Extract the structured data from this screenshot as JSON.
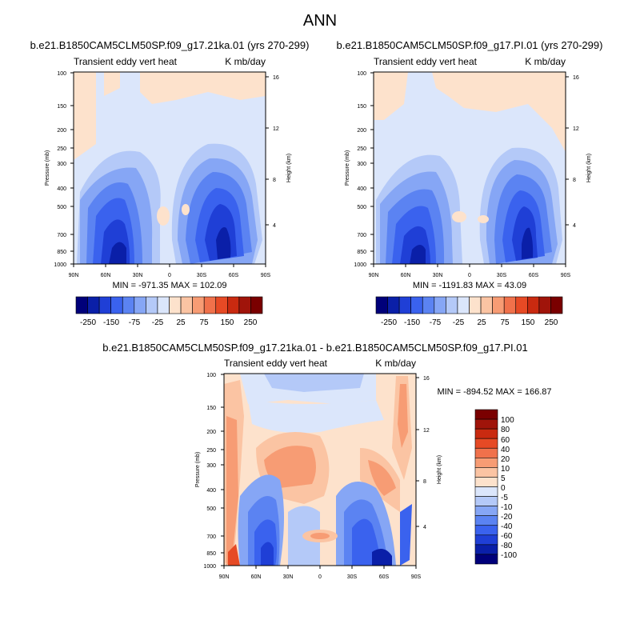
{
  "page_title": "ANN",
  "panels": [
    {
      "id": "top-left",
      "case_title": "b.e21.B1850CAM5CLM50SP.f09_g17.21ka.01 (yrs 270-299)",
      "left_string": "Transient eddy vert heat",
      "right_string": "K mb/day",
      "stats_text": "MIN = -971.35  MAX = 102.09"
    },
    {
      "id": "top-right",
      "case_title": "b.e21.B1850CAM5CLM50SP.f09_g17.PI.01 (yrs 270-299)",
      "left_string": "Transient eddy vert heat",
      "right_string": "K mb/day",
      "stats_text": "MIN = -1191.83  MAX =  43.09"
    },
    {
      "id": "bottom-diff",
      "case_title": "b.e21.B1850CAM5CLM50SP.f09_g17.21ka.01 - b.e21.B1850CAM5CLM50SP.f09_g17.PI.01",
      "left_string": "Transient eddy vert heat",
      "right_string": "K mb/day",
      "stats_text": "MIN = -894.52  MAX = 166.87"
    }
  ],
  "chart_data": [
    {
      "type": "heatmap",
      "panel": "top-left",
      "ylabel": "Pressure (mb)",
      "y2label": "Height (km)",
      "x_ticks": [
        "90N",
        "60N",
        "30N",
        "0",
        "30S",
        "60S",
        "90S"
      ],
      "y_ticks": [
        "100",
        "150",
        "200",
        "250",
        "300",
        "400",
        "500",
        "700",
        "850",
        "1000"
      ],
      "height_ticks": [
        "16",
        "12",
        "8",
        "4"
      ],
      "y_scale": "log",
      "ylim": [
        1000,
        100
      ],
      "min": -971.35,
      "max": 102.09
    },
    {
      "type": "heatmap",
      "panel": "top-right",
      "ylabel": "Pressure (mb)",
      "y2label": "Height (km)",
      "x_ticks": [
        "90N",
        "60N",
        "30N",
        "0",
        "30S",
        "60S",
        "90S"
      ],
      "y_ticks": [
        "100",
        "150",
        "200",
        "250",
        "300",
        "400",
        "500",
        "700",
        "850",
        "1000"
      ],
      "height_ticks": [
        "16",
        "12",
        "8",
        "4"
      ],
      "y_scale": "log",
      "ylim": [
        1000,
        100
      ],
      "min": -1191.83,
      "max": 43.09
    },
    {
      "type": "heatmap",
      "panel": "bottom-diff",
      "ylabel": "Pressure (mb)",
      "y2label": "Height (km)",
      "x_ticks": [
        "90N",
        "60N",
        "30N",
        "0",
        "30S",
        "60S",
        "90S"
      ],
      "y_ticks": [
        "100",
        "150",
        "200",
        "250",
        "300",
        "400",
        "500",
        "700",
        "850",
        "1000"
      ],
      "height_ticks": [
        "16",
        "12",
        "8",
        "4"
      ],
      "y_scale": "log",
      "ylim": [
        1000,
        100
      ],
      "min": -894.52,
      "max": 166.87
    }
  ],
  "colorbar_top": {
    "labels": [
      "-250",
      "-150",
      "-75",
      "-25",
      "25",
      "75",
      "150",
      "250"
    ],
    "colors": [
      "#00007a",
      "#0a1fa8",
      "#1f3fd6",
      "#3a62ee",
      "#5b83f2",
      "#86a6f5",
      "#b4c9f8",
      "#dbe6fb",
      "#fde2cc",
      "#fbc4a3",
      "#f79c74",
      "#f0714b",
      "#e64a25",
      "#c92a10",
      "#a0140a",
      "#7a0000"
    ]
  },
  "colorbar_diff": {
    "labels": [
      "100",
      "80",
      "60",
      "40",
      "20",
      "10",
      "5",
      "0",
      "-5",
      "-10",
      "-20",
      "-40",
      "-60",
      "-80",
      "-100"
    ],
    "colors": [
      "#7a0000",
      "#a0140a",
      "#c92a10",
      "#e64a25",
      "#f0714b",
      "#f79c74",
      "#fbc4a3",
      "#fde2cc",
      "#dbe6fb",
      "#b4c9f8",
      "#86a6f5",
      "#5b83f2",
      "#3a62ee",
      "#1f3fd6",
      "#0a1fa8",
      "#00007a"
    ]
  }
}
